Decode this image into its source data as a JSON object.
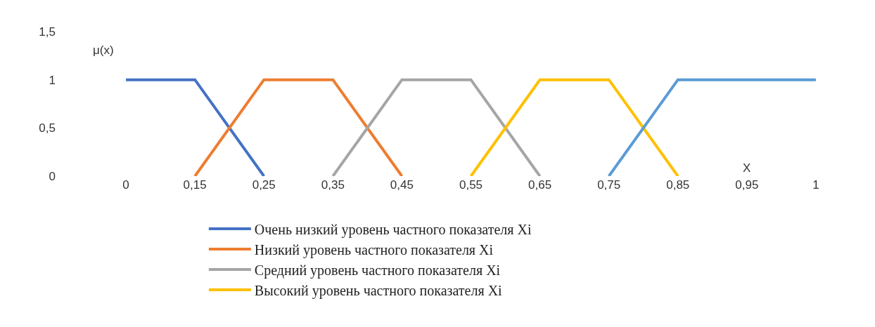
{
  "chart_data": {
    "type": "line",
    "xlabel": "X",
    "ylabel": "μ(x)",
    "categories": [
      "0",
      "0,15",
      "0,25",
      "0,35",
      "0,45",
      "0,55",
      "0,65",
      "0,75",
      "0,85",
      "0,95",
      "1"
    ],
    "series": [
      {
        "name": "Очень низкий уровень частного показателя Xi",
        "color": "#4472c4",
        "values": [
          1,
          1,
          0,
          null,
          null,
          null,
          null,
          null,
          null,
          null,
          null
        ]
      },
      {
        "name": "Низкий уровень частного показателя Xi",
        "color": "#ed7d31",
        "values": [
          null,
          0,
          1,
          1,
          0,
          null,
          null,
          null,
          null,
          null,
          null
        ]
      },
      {
        "name": "Средний уровень частного показателя Xi",
        "color": "#a5a5a5",
        "values": [
          null,
          null,
          null,
          0,
          1,
          1,
          0,
          null,
          null,
          null,
          null
        ]
      },
      {
        "name": "Высокий уровень частного показателя Xi",
        "color": "#ffc000",
        "values": [
          null,
          null,
          null,
          null,
          null,
          0,
          1,
          1,
          0,
          null,
          null
        ]
      },
      {
        "color": "#5b9bd5",
        "values": [
          null,
          null,
          null,
          null,
          null,
          null,
          null,
          0,
          1,
          1,
          1
        ]
      }
    ],
    "ylim": [
      0,
      1.5
    ],
    "yticks": [
      0,
      {
        "value": 0.5,
        "label": "0,5"
      },
      1,
      {
        "value": 1.5,
        "label": "1,5"
      }
    ],
    "legend": "bottom",
    "marker": "none",
    "line_style": "solid"
  }
}
